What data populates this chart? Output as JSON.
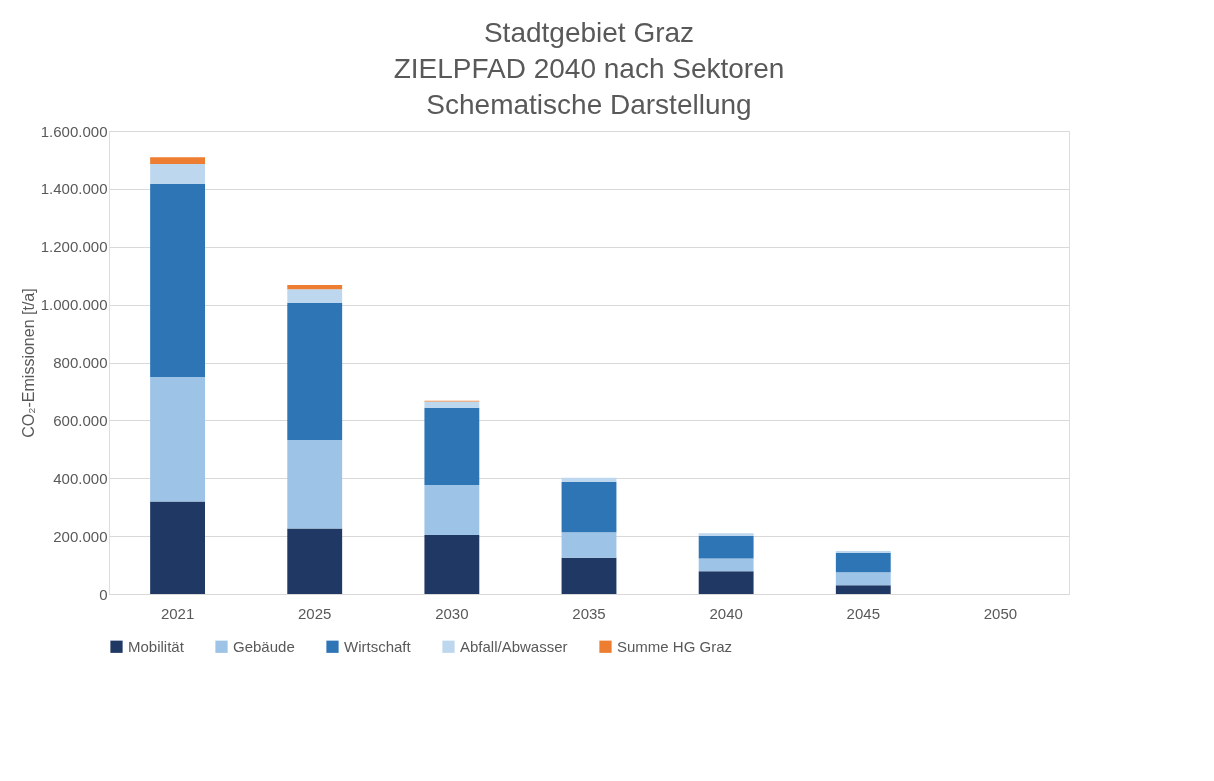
{
  "chart_data": {
    "type": "bar",
    "stacked": true,
    "title": [
      "Stadtgebiet Graz",
      "ZIELPFAD 2040 nach Sektoren",
      "Schematische Darstellung"
    ],
    "ylabel": "CO₂-Emissionen [t/a]",
    "categories": [
      "2021",
      "2025",
      "2030",
      "2035",
      "2040",
      "2045",
      "2050"
    ],
    "series": [
      {
        "name": "Mobilität",
        "color": "#203864",
        "values": [
          320000,
          226000,
          204000,
          125000,
          79000,
          30000,
          0
        ]
      },
      {
        "name": "Gebäude",
        "color": "#9dc3e6",
        "values": [
          430000,
          306000,
          173000,
          88000,
          44000,
          45000,
          0
        ]
      },
      {
        "name": "Wirtschaft",
        "color": "#2e75b6",
        "values": [
          668000,
          474000,
          267000,
          174000,
          78000,
          67000,
          0
        ]
      },
      {
        "name": "Abfall/Abwasser",
        "color": "#bdd7ee",
        "values": [
          68000,
          47000,
          21000,
          15000,
          9000,
          7000,
          0
        ]
      },
      {
        "name": "Summe HG Graz",
        "color": "#ed7d31",
        "values": [
          23000,
          15000,
          3000,
          0,
          0,
          0,
          0
        ]
      }
    ],
    "ylim": [
      0,
      1600000
    ],
    "yticks": [
      {
        "value": 0,
        "label": "0"
      },
      {
        "value": 200000,
        "label": "200.000"
      },
      {
        "value": 400000,
        "label": "400.000"
      },
      {
        "value": 600000,
        "label": "600.000"
      },
      {
        "value": 800000,
        "label": "800.000"
      },
      {
        "value": 1000000,
        "label": "1.000.000"
      },
      {
        "value": 1200000,
        "label": "1.200.000"
      },
      {
        "value": 1400000,
        "label": "1.400.000"
      },
      {
        "value": 1600000,
        "label": "1.600.000"
      }
    ],
    "grid": "y",
    "legend": "bottom"
  }
}
